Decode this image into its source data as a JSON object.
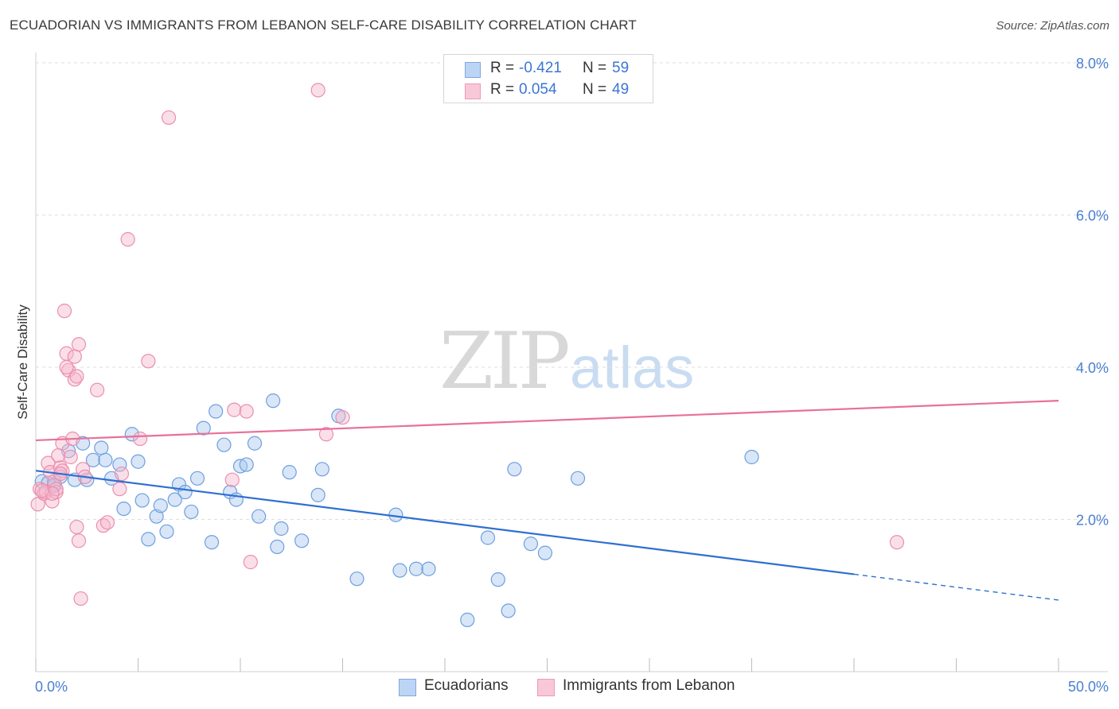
{
  "title": "ECUADORIAN VS IMMIGRANTS FROM LEBANON SELF-CARE DISABILITY CORRELATION CHART",
  "source": "Source: ZipAtlas.com",
  "watermark": {
    "zip": "ZIP",
    "atlas": "atlas"
  },
  "legend": {
    "rows": [
      {
        "r_label": "R =",
        "r_value": "-0.421",
        "n_label": "N =",
        "n_value": "59"
      },
      {
        "r_label": "R =",
        "r_value": "0.054",
        "n_label": "N =",
        "n_value": "49"
      }
    ]
  },
  "bottom_legend": [
    "Ecuadorians",
    "Immigrants from Lebanon"
  ],
  "colors": {
    "blue_fill": "#a9c8f0",
    "blue_stroke": "#6f9fde",
    "blue_line": "#2f6fd0",
    "pink_fill": "#f6b8cc",
    "pink_stroke": "#ea8fae",
    "pink_line": "#e8709a",
    "tick_text": "#4a7fd0"
  },
  "chart_data": {
    "type": "scatter",
    "title": "ECUADORIAN VS IMMIGRANTS FROM LEBANON SELF-CARE DISABILITY CORRELATION CHART",
    "xlabel": "",
    "ylabel": "Self-Care Disability",
    "xlim": [
      0,
      50
    ],
    "ylim": [
      0,
      8.0
    ],
    "x_tick_labels": [
      "0.0%",
      "50.0%"
    ],
    "y_ticks": [
      2.0,
      4.0,
      6.0,
      8.0
    ],
    "y_tick_labels": [
      "2.0%",
      "4.0%",
      "6.0%",
      "8.0%"
    ],
    "grid": true,
    "legend_position": "top-center",
    "series": [
      {
        "name": "Ecuadorians",
        "r": -0.421,
        "n": 59,
        "trend": {
          "x0": 0,
          "y0": 2.64,
          "x1": 40,
          "y1": 1.28,
          "dashed_to_x": 50,
          "dashed_to_y": 0.94
        },
        "points": [
          [
            0.3,
            2.5
          ],
          [
            0.6,
            2.48
          ],
          [
            0.9,
            2.44
          ],
          [
            1.2,
            2.56
          ],
          [
            1.6,
            2.9
          ],
          [
            1.9,
            2.52
          ],
          [
            2.3,
            3.0
          ],
          [
            2.5,
            2.52
          ],
          [
            2.8,
            2.78
          ],
          [
            3.2,
            2.94
          ],
          [
            3.4,
            2.78
          ],
          [
            3.7,
            2.54
          ],
          [
            4.1,
            2.72
          ],
          [
            4.3,
            2.14
          ],
          [
            4.7,
            3.12
          ],
          [
            5.0,
            2.76
          ],
          [
            5.2,
            2.25
          ],
          [
            5.5,
            1.74
          ],
          [
            5.9,
            2.04
          ],
          [
            6.1,
            2.18
          ],
          [
            6.4,
            1.84
          ],
          [
            6.8,
            2.26
          ],
          [
            7.0,
            2.46
          ],
          [
            7.3,
            2.36
          ],
          [
            7.6,
            2.1
          ],
          [
            7.9,
            2.54
          ],
          [
            8.2,
            3.2
          ],
          [
            8.6,
            1.7
          ],
          [
            8.8,
            3.42
          ],
          [
            9.2,
            2.98
          ],
          [
            9.5,
            2.36
          ],
          [
            9.8,
            2.26
          ],
          [
            10.0,
            2.7
          ],
          [
            10.3,
            2.72
          ],
          [
            10.7,
            3.0
          ],
          [
            10.9,
            2.04
          ],
          [
            11.6,
            3.56
          ],
          [
            11.8,
            1.64
          ],
          [
            12.0,
            1.88
          ],
          [
            12.4,
            2.62
          ],
          [
            13.0,
            1.72
          ],
          [
            13.8,
            2.32
          ],
          [
            14.0,
            2.66
          ],
          [
            14.8,
            3.36
          ],
          [
            15.7,
            1.22
          ],
          [
            17.6,
            2.06
          ],
          [
            17.8,
            1.33
          ],
          [
            18.6,
            1.35
          ],
          [
            19.2,
            1.35
          ],
          [
            21.1,
            0.68
          ],
          [
            22.1,
            1.76
          ],
          [
            22.6,
            1.21
          ],
          [
            23.1,
            0.8
          ],
          [
            23.4,
            2.66
          ],
          [
            24.2,
            1.68
          ],
          [
            24.9,
            1.56
          ],
          [
            26.5,
            2.54
          ],
          [
            35.0,
            2.82
          ],
          [
            0.9,
            2.46
          ]
        ]
      },
      {
        "name": "Immigrants from Lebanon",
        "r": 0.054,
        "n": 49,
        "trend": {
          "x0": 0,
          "y0": 3.04,
          "x1": 50,
          "y1": 3.56
        },
        "points": [
          [
            0.1,
            2.2
          ],
          [
            0.2,
            2.4
          ],
          [
            0.4,
            2.34
          ],
          [
            0.5,
            2.36
          ],
          [
            0.6,
            2.74
          ],
          [
            0.7,
            2.62
          ],
          [
            0.8,
            2.24
          ],
          [
            0.9,
            2.5
          ],
          [
            1.0,
            2.36
          ],
          [
            1.1,
            2.84
          ],
          [
            1.2,
            2.68
          ],
          [
            1.3,
            3.0
          ],
          [
            1.3,
            2.64
          ],
          [
            1.4,
            4.74
          ],
          [
            1.5,
            4.18
          ],
          [
            1.6,
            3.96
          ],
          [
            1.7,
            2.82
          ],
          [
            1.8,
            3.06
          ],
          [
            1.9,
            4.14
          ],
          [
            1.9,
            3.84
          ],
          [
            2.0,
            3.88
          ],
          [
            2.0,
            1.9
          ],
          [
            2.1,
            4.3
          ],
          [
            2.1,
            1.72
          ],
          [
            2.2,
            0.96
          ],
          [
            2.3,
            2.66
          ],
          [
            2.4,
            2.56
          ],
          [
            1.2,
            2.6
          ],
          [
            1.5,
            4.0
          ],
          [
            1.0,
            2.4
          ],
          [
            0.8,
            2.34
          ],
          [
            3.0,
            3.7
          ],
          [
            3.3,
            1.92
          ],
          [
            3.5,
            1.96
          ],
          [
            4.1,
            2.4
          ],
          [
            4.2,
            2.6
          ],
          [
            4.5,
            5.68
          ],
          [
            5.1,
            3.06
          ],
          [
            5.5,
            4.08
          ],
          [
            6.5,
            7.28
          ],
          [
            9.6,
            2.52
          ],
          [
            9.7,
            3.44
          ],
          [
            10.3,
            3.42
          ],
          [
            10.5,
            1.44
          ],
          [
            13.8,
            7.64
          ],
          [
            14.2,
            3.12
          ],
          [
            15.0,
            3.34
          ],
          [
            42.1,
            1.7
          ],
          [
            0.3,
            2.38
          ]
        ]
      }
    ]
  }
}
